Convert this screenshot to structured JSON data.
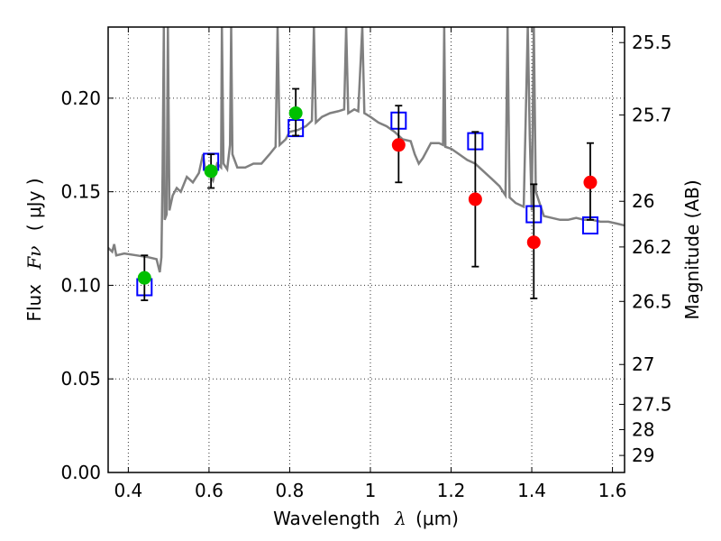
{
  "chart_data": {
    "type": "scatter",
    "xlabel_text": "Wavelength",
    "xlabel_symbol": "λ",
    "xlabel_unit": "(μm)",
    "ylabel_text": "Flux",
    "ylabel_symbol": "Fν",
    "ylabel_unit": "( μJy )",
    "y2label": "Magnitude (AB)",
    "xlim": [
      0.35,
      1.63
    ],
    "ylim": [
      0.0,
      0.238
    ],
    "grid": true,
    "x_ticks": [
      0.4,
      0.6,
      0.8,
      1.0,
      1.2,
      1.4,
      1.6
    ],
    "x_tick_labels": [
      "0.4",
      "0.6",
      "0.8",
      "1",
      "1.2",
      "1.4",
      "1.6"
    ],
    "y_ticks": [
      0.0,
      0.05,
      0.1,
      0.15,
      0.2
    ],
    "y_tick_labels": [
      "0.00",
      "0.05",
      "0.10",
      "0.15",
      "0.20"
    ],
    "y2_ticks": [
      {
        "label": "25.5",
        "flux": 0.2297
      },
      {
        "label": "25.7",
        "flux": 0.191
      },
      {
        "label": "26",
        "flux": 0.1449
      },
      {
        "label": "26.2",
        "flux": 0.1205
      },
      {
        "label": "26.5",
        "flux": 0.0914
      },
      {
        "label": "27",
        "flux": 0.0577
      },
      {
        "label": "27.5",
        "flux": 0.0364
      },
      {
        "label": "28",
        "flux": 0.0229
      },
      {
        "label": "29",
        "flux": 0.0091
      }
    ],
    "series": [
      {
        "kind": "model_spectrum_line",
        "color": "#808080",
        "points": [
          [
            0.35,
            0.12
          ],
          [
            0.36,
            0.118
          ],
          [
            0.365,
            0.122
          ],
          [
            0.37,
            0.116
          ],
          [
            0.39,
            0.117
          ],
          [
            0.42,
            0.116
          ],
          [
            0.45,
            0.115
          ],
          [
            0.47,
            0.114
          ],
          [
            0.478,
            0.107
          ],
          [
            0.482,
            0.115
          ],
          [
            0.485,
            0.16
          ],
          [
            0.488,
            0.24
          ],
          [
            0.49,
            0.135
          ],
          [
            0.495,
            0.138
          ],
          [
            0.498,
            0.24
          ],
          [
            0.502,
            0.14
          ],
          [
            0.51,
            0.148
          ],
          [
            0.52,
            0.152
          ],
          [
            0.53,
            0.15
          ],
          [
            0.545,
            0.158
          ],
          [
            0.56,
            0.155
          ],
          [
            0.575,
            0.16
          ],
          [
            0.585,
            0.17
          ],
          [
            0.59,
            0.163
          ],
          [
            0.6,
            0.16
          ],
          [
            0.61,
            0.156
          ],
          [
            0.62,
            0.165
          ],
          [
            0.63,
            0.163
          ],
          [
            0.632,
            0.24
          ],
          [
            0.636,
            0.165
          ],
          [
            0.645,
            0.162
          ],
          [
            0.652,
            0.175
          ],
          [
            0.655,
            0.24
          ],
          [
            0.658,
            0.17
          ],
          [
            0.67,
            0.163
          ],
          [
            0.69,
            0.163
          ],
          [
            0.71,
            0.165
          ],
          [
            0.73,
            0.165
          ],
          [
            0.75,
            0.17
          ],
          [
            0.765,
            0.174
          ],
          [
            0.77,
            0.24
          ],
          [
            0.775,
            0.175
          ],
          [
            0.79,
            0.178
          ],
          [
            0.8,
            0.182
          ],
          [
            0.82,
            0.183
          ],
          [
            0.84,
            0.185
          ],
          [
            0.855,
            0.188
          ],
          [
            0.86,
            0.24
          ],
          [
            0.865,
            0.187
          ],
          [
            0.88,
            0.19
          ],
          [
            0.9,
            0.192
          ],
          [
            0.92,
            0.193
          ],
          [
            0.935,
            0.194
          ],
          [
            0.94,
            0.24
          ],
          [
            0.945,
            0.192
          ],
          [
            0.96,
            0.194
          ],
          [
            0.97,
            0.193
          ],
          [
            0.98,
            0.24
          ],
          [
            0.985,
            0.192
          ],
          [
            1.0,
            0.19
          ],
          [
            1.02,
            0.187
          ],
          [
            1.04,
            0.185
          ],
          [
            1.06,
            0.182
          ],
          [
            1.08,
            0.178
          ],
          [
            1.1,
            0.177
          ],
          [
            1.11,
            0.17
          ],
          [
            1.12,
            0.165
          ],
          [
            1.13,
            0.168
          ],
          [
            1.15,
            0.176
          ],
          [
            1.17,
            0.176
          ],
          [
            1.18,
            0.175
          ],
          [
            1.183,
            0.24
          ],
          [
            1.186,
            0.174
          ],
          [
            1.2,
            0.173
          ],
          [
            1.22,
            0.17
          ],
          [
            1.24,
            0.167
          ],
          [
            1.26,
            0.165
          ],
          [
            1.27,
            0.163
          ],
          [
            1.3,
            0.157
          ],
          [
            1.32,
            0.153
          ],
          [
            1.335,
            0.148
          ],
          [
            1.34,
            0.24
          ],
          [
            1.345,
            0.147
          ],
          [
            1.36,
            0.144
          ],
          [
            1.38,
            0.142
          ],
          [
            1.39,
            0.24
          ],
          [
            1.395,
            0.18
          ],
          [
            1.4,
            0.14
          ],
          [
            1.405,
            0.24
          ],
          [
            1.41,
            0.15
          ],
          [
            1.43,
            0.137
          ],
          [
            1.45,
            0.136
          ],
          [
            1.47,
            0.135
          ],
          [
            1.49,
            0.135
          ],
          [
            1.51,
            0.136
          ],
          [
            1.53,
            0.135
          ],
          [
            1.55,
            0.135
          ],
          [
            1.57,
            0.134
          ],
          [
            1.59,
            0.134
          ],
          [
            1.61,
            0.133
          ],
          [
            1.63,
            0.132
          ]
        ]
      },
      {
        "kind": "model_photometry_squares",
        "color": "#0000ff",
        "points": [
          [
            0.44,
            0.099
          ],
          [
            0.605,
            0.166
          ],
          [
            0.815,
            0.184
          ],
          [
            1.07,
            0.188
          ],
          [
            1.26,
            0.177
          ],
          [
            1.405,
            0.138
          ],
          [
            1.545,
            0.132
          ]
        ]
      },
      {
        "kind": "observed_green",
        "color": "#00c000",
        "points": [
          {
            "x": 0.44,
            "y": 0.104,
            "err_low": 0.092,
            "err_high": 0.116
          },
          {
            "x": 0.605,
            "y": 0.161,
            "err_low": 0.152,
            "err_high": 0.17
          },
          {
            "x": 0.815,
            "y": 0.192,
            "err_low": 0.18,
            "err_high": 0.205
          }
        ]
      },
      {
        "kind": "observed_red",
        "color": "#ff0000",
        "points": [
          {
            "x": 1.07,
            "y": 0.175,
            "err_low": 0.155,
            "err_high": 0.196
          },
          {
            "x": 1.26,
            "y": 0.146,
            "err_low": 0.11,
            "err_high": 0.182
          },
          {
            "x": 1.405,
            "y": 0.123,
            "err_low": 0.093,
            "err_high": 0.154
          },
          {
            "x": 1.545,
            "y": 0.155,
            "err_low": 0.135,
            "err_high": 0.176
          }
        ]
      }
    ]
  }
}
